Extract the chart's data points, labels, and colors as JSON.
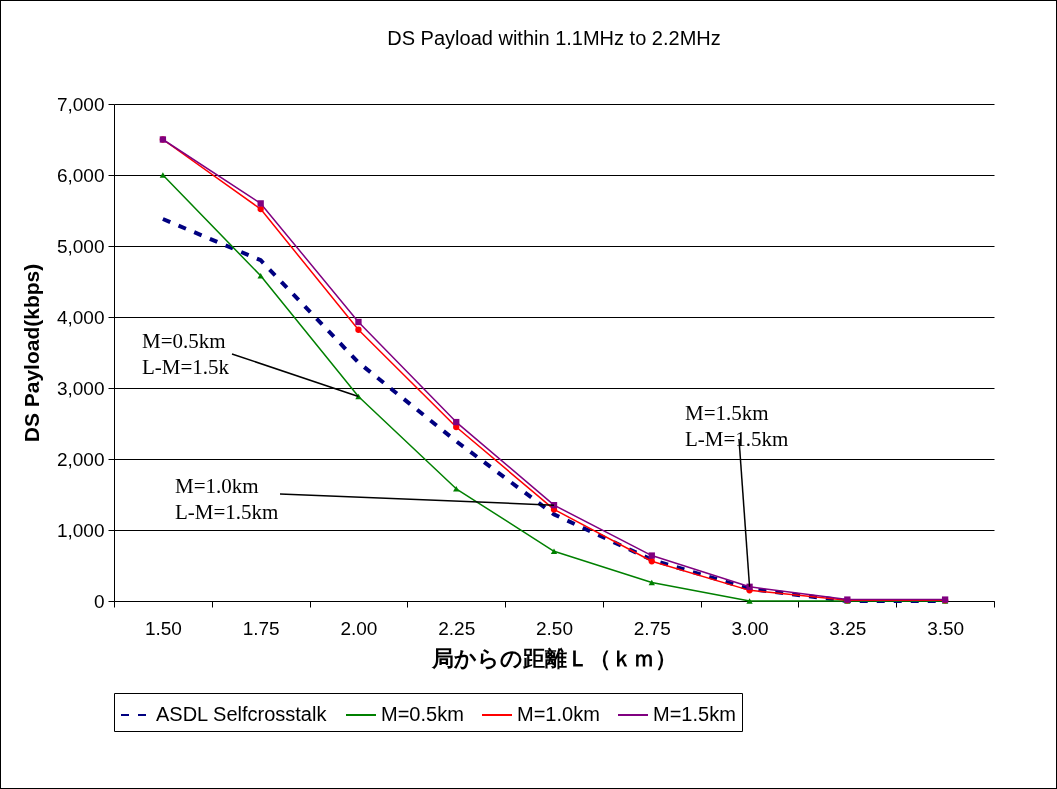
{
  "chart_data": {
    "type": "line",
    "title": "DS Payload within 1.1MHz to 2.2MHz",
    "xlabel": "局からの距離Ｌ（ｋｍ）",
    "ylabel": "DS Payload(kbps)",
    "categories": [
      "1.50",
      "1.75",
      "2.00",
      "2.25",
      "2.50",
      "2.75",
      "3.00",
      "3.25",
      "3.50"
    ],
    "series": [
      {
        "name": "ASDL Selfcrosstalk",
        "color": "#000080",
        "line_style": "dashed",
        "marker": "none",
        "values": [
          5380,
          4800,
          3360,
          2250,
          1220,
          580,
          170,
          0,
          0
        ]
      },
      {
        "name": "M=0.5km",
        "color": "#008000",
        "line_style": "solid",
        "marker": "triangle",
        "values": [
          6000,
          4580,
          2880,
          1580,
          700,
          260,
          0,
          0,
          0
        ]
      },
      {
        "name": "M=1.0km",
        "color": "#ff0000",
        "line_style": "solid",
        "marker": "circle",
        "values": [
          6500,
          5520,
          3820,
          2450,
          1290,
          560,
          150,
          10,
          10
        ]
      },
      {
        "name": "M=1.5km",
        "color": "#800080",
        "line_style": "solid",
        "marker": "square",
        "values": [
          6500,
          5600,
          3930,
          2520,
          1350,
          640,
          200,
          20,
          20
        ]
      }
    ],
    "ylim": [
      0,
      7000
    ],
    "yticks": [
      0,
      {
        "value": 1000,
        "label": "1,000"
      },
      {
        "value": 2000,
        "label": "2,000"
      },
      {
        "value": 3000,
        "label": "3,000"
      },
      {
        "value": 4000,
        "label": "4,000"
      },
      {
        "value": 5000,
        "label": "5,000"
      },
      {
        "value": 6000,
        "label": "6,000"
      },
      {
        "value": 7000,
        "label": "7,000"
      }
    ],
    "grid": "y",
    "legend": "bottom",
    "annotations": [
      {
        "text": "M=0.5km\nL-M=1.5k",
        "x": "2.00",
        "y": 2880
      },
      {
        "text": "M=1.0km\nL-M=1.5km",
        "x": "2.50",
        "y": 1350
      },
      {
        "text": "M=1.5km\nL-M=1.5km",
        "x": "3.00",
        "y": 200
      }
    ]
  }
}
